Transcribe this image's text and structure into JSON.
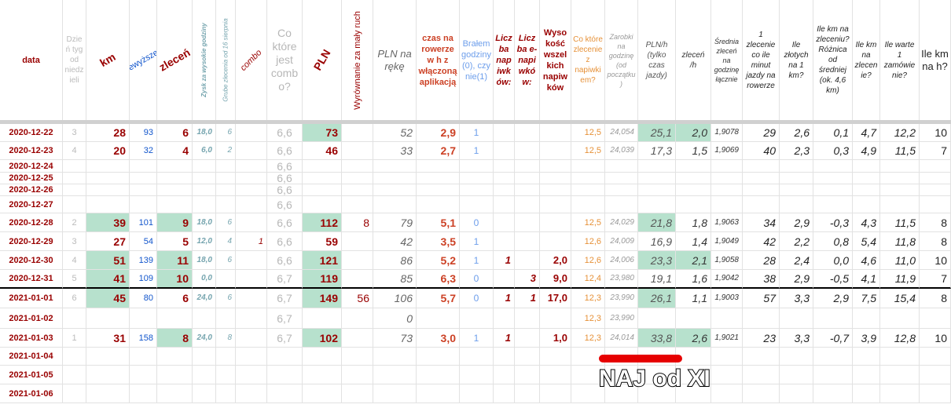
{
  "table": {
    "columns": [
      "data",
      "Dzień tyg od niedzieli",
      "km",
      "przewyższenia",
      "zleceń",
      "Zysk za wysokie godziny",
      "Grube zlecenia od 16 sierpnia",
      "combo",
      "Co które jest combo?",
      "PLN",
      "Wyrównanie za mały ruch",
      "PLN na rękę",
      "czas na rowerze w h z włączoną aplikacją",
      "Brałem godziny (0), czy nie(1)",
      "Liczba napiwków:",
      "Liczba e-napiwków:",
      "Wysokość wszelkich napiwków",
      "Co które zlecenie z napiwkiem?",
      "Zarobki na godzinę (od początku)",
      "PLN/h (tylko czas jazdy)",
      "zleceń /h",
      "Średnia zleceń na godzinę łącznie",
      "1 zlecenie co ile minut jazdy na rowerze",
      "Ile złotych na 1 km?",
      "Ile km na zleceniu? Różnica od średniej (ok. 4,6 km)",
      "Ile km na zlecenie?",
      "Ile warte 1 zamówienie?",
      "Ile km na h?"
    ],
    "rows": [
      [
        "2020-12-22",
        "3",
        "28",
        "93",
        "6",
        "18,0",
        "6",
        null,
        "6,6",
        "73",
        null,
        "52",
        "2,9",
        "1",
        null,
        null,
        null,
        "12,5",
        "24,054",
        "25,1",
        "2,0",
        "1,9078",
        "29",
        "2,6",
        "0,1",
        "4,7",
        "12,2",
        "10"
      ],
      [
        "2020-12-23",
        "4",
        "20",
        "32",
        "4",
        "6,0",
        "2",
        null,
        "6,6",
        "46",
        null,
        "33",
        "2,7",
        "1",
        null,
        null,
        null,
        "12,5",
        "24,039",
        "17,3",
        "1,5",
        "1,9069",
        "40",
        "2,3",
        "0,3",
        "4,9",
        "11,5",
        "7"
      ],
      [
        "2020-12-24",
        null,
        null,
        null,
        null,
        null,
        null,
        null,
        "6,6",
        null,
        null,
        null,
        null,
        null,
        null,
        null,
        null,
        null,
        null,
        null,
        null,
        null,
        null,
        null,
        null,
        null,
        null,
        null
      ],
      [
        "2020-12-25",
        null,
        null,
        null,
        null,
        null,
        null,
        null,
        "6,6",
        null,
        null,
        null,
        null,
        null,
        null,
        null,
        null,
        null,
        null,
        null,
        null,
        null,
        null,
        null,
        null,
        null,
        null,
        null
      ],
      [
        "2020-12-26",
        null,
        null,
        null,
        null,
        null,
        null,
        null,
        "6,6",
        null,
        null,
        null,
        null,
        null,
        null,
        null,
        null,
        null,
        null,
        null,
        null,
        null,
        null,
        null,
        null,
        null,
        null,
        null
      ],
      [
        "2020-12-27",
        null,
        null,
        null,
        null,
        null,
        null,
        null,
        "6,6",
        null,
        null,
        null,
        null,
        null,
        null,
        null,
        null,
        null,
        null,
        null,
        null,
        null,
        null,
        null,
        null,
        null,
        null,
        null
      ],
      [
        "2020-12-28",
        "2",
        "39",
        "101",
        "9",
        "18,0",
        "6",
        null,
        "6,6",
        "112",
        "8",
        "79",
        "5,1",
        "0",
        null,
        null,
        null,
        "12,5",
        "24,029",
        "21,8",
        "1,8",
        "1,9063",
        "34",
        "2,9",
        "-0,3",
        "4,3",
        "11,5",
        "8"
      ],
      [
        "2020-12-29",
        "3",
        "27",
        "54",
        "5",
        "12,0",
        "4",
        "1",
        "6,6",
        "59",
        null,
        "42",
        "3,5",
        "1",
        null,
        null,
        null,
        "12,6",
        "24,009",
        "16,9",
        "1,4",
        "1,9049",
        "42",
        "2,2",
        "0,8",
        "5,4",
        "11,8",
        "8"
      ],
      [
        "2020-12-30",
        "4",
        "51",
        "139",
        "11",
        "18,0",
        "6",
        null,
        "6,6",
        "121",
        null,
        "86",
        "5,2",
        "1",
        "1",
        null,
        "2,0",
        "12,6",
        "24,006",
        "23,3",
        "2,1",
        "1,9058",
        "28",
        "2,4",
        "0,0",
        "4,6",
        "11,0",
        "10"
      ],
      [
        "2020-12-31",
        "5",
        "41",
        "109",
        "10",
        "0,0",
        null,
        null,
        "6,7",
        "119",
        null,
        "85",
        "6,3",
        "0",
        null,
        "3",
        "9,0",
        "12,4",
        "23,980",
        "19,1",
        "1,6",
        "1,9042",
        "38",
        "2,9",
        "-0,5",
        "4,1",
        "11,9",
        "7"
      ],
      [
        "2021-01-01",
        "6",
        "45",
        "80",
        "6",
        "24,0",
        "6",
        null,
        "6,7",
        "149",
        "56",
        "106",
        "5,7",
        "0",
        "1",
        "1",
        "17,0",
        "12,3",
        "23,990",
        "26,1",
        "1,1",
        "1,9003",
        "57",
        "3,3",
        "2,9",
        "7,5",
        "15,4",
        "8"
      ],
      [
        "2021-01-02",
        null,
        null,
        null,
        null,
        null,
        null,
        null,
        "6,7",
        null,
        null,
        "0",
        null,
        null,
        null,
        null,
        null,
        "12,3",
        "23,990",
        null,
        null,
        null,
        null,
        null,
        null,
        null,
        null,
        null
      ],
      [
        "2021-01-03",
        "1",
        "31",
        "158",
        "8",
        "24,0",
        "8",
        null,
        "6,7",
        "102",
        null,
        "73",
        "3,0",
        "1",
        "1",
        null,
        "1,0",
        "12,3",
        "24,014",
        "33,8",
        "2,6",
        "1,9021",
        "23",
        "3,3",
        "-0,7",
        "3,9",
        "12,8",
        "10"
      ],
      [
        "2021-01-04",
        null,
        null,
        null,
        null,
        null,
        null,
        null,
        null,
        null,
        null,
        null,
        null,
        null,
        null,
        null,
        null,
        null,
        null,
        null,
        null,
        null,
        null,
        null,
        null,
        null,
        null,
        null
      ],
      [
        "2021-01-05",
        null,
        null,
        null,
        null,
        null,
        null,
        null,
        null,
        null,
        null,
        null,
        null,
        null,
        null,
        null,
        null,
        null,
        null,
        null,
        null,
        null,
        null,
        null,
        null,
        null,
        null,
        null
      ],
      [
        "2021-01-06",
        null,
        null,
        null,
        null,
        null,
        null,
        null,
        null,
        null,
        null,
        null,
        null,
        null,
        null,
        null,
        null,
        null,
        null,
        null,
        null,
        null,
        null,
        null,
        null,
        null,
        null,
        null
      ]
    ]
  },
  "annotation": "NAJ od XI"
}
